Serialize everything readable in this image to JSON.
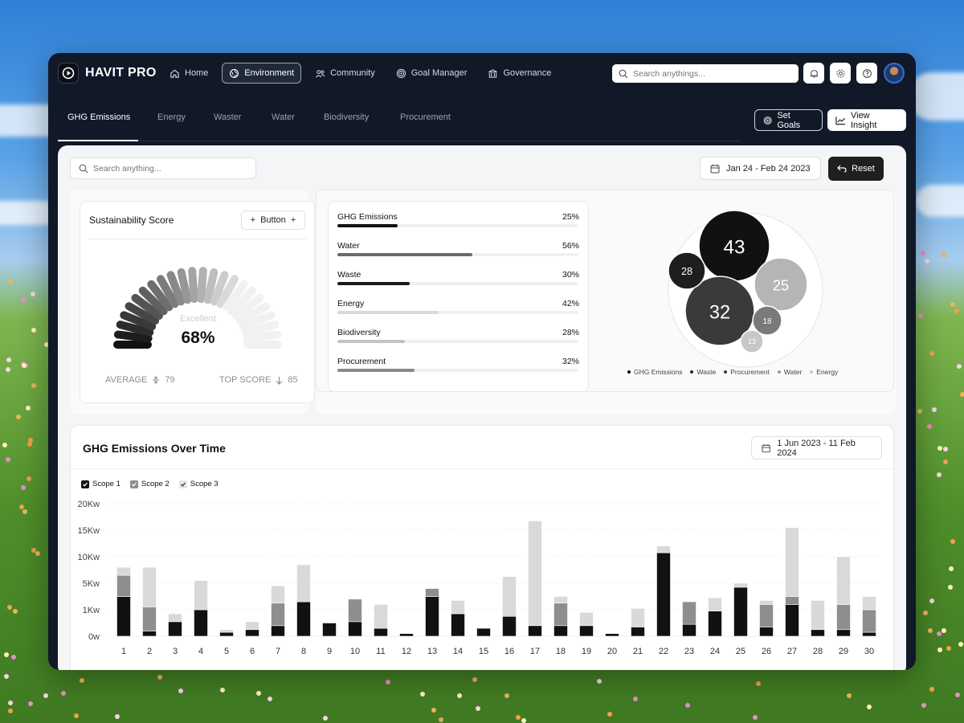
{
  "app": {
    "name": "HAVIT PRO"
  },
  "nav": [
    {
      "label": "Home",
      "icon": "home-icon"
    },
    {
      "label": "Environment",
      "icon": "globe-icon"
    },
    {
      "label": "Community",
      "icon": "users-icon"
    },
    {
      "label": "Goal Manager",
      "icon": "target-icon"
    },
    {
      "label": "Governance",
      "icon": "bank-icon"
    }
  ],
  "top_search": {
    "placeholder": "Search anythings..."
  },
  "tabs": [
    "GHG Emissions",
    "Energy",
    "Waster",
    "Water",
    "Biodiversity",
    "Procurement"
  ],
  "actions": {
    "set_goals": "Set Goals",
    "view_insight": "View Insight"
  },
  "main_search": {
    "placeholder": "Search anything..."
  },
  "date_range": "Jan 24 - Feb 24 2023",
  "reset_label": "Reset",
  "sustainability": {
    "title": "Sustainability Score",
    "button_label": "Button",
    "rating": "Excellent",
    "score": "68%",
    "score_fraction": 0.68,
    "average_label": "AVERAGE",
    "average_value": "79",
    "top_label": "TOP SCORE",
    "top_value": "85"
  },
  "breakdown": [
    {
      "label": "GHG Emissions",
      "value": "25%",
      "fraction": 0.25,
      "color": "#111111"
    },
    {
      "label": "Water",
      "value": "56%",
      "fraction": 0.56,
      "color": "#6b6b6b"
    },
    {
      "label": "Waste",
      "value": "30%",
      "fraction": 0.3,
      "color": "#1a1a1a"
    },
    {
      "label": "Energy",
      "value": "42%",
      "fraction": 0.42,
      "color": "#d9d9d9"
    },
    {
      "label": "Biodiversity",
      "value": "28%",
      "fraction": 0.28,
      "color": "#c4c4c4"
    },
    {
      "label": "Procurement",
      "value": "32%",
      "fraction": 0.32,
      "color": "#8a8a8a"
    }
  ],
  "bubbles": {
    "values": [
      "43",
      "32",
      "28",
      "25",
      "18",
      "13"
    ],
    "colors": [
      "#111111",
      "#3a3a3a",
      "#1e1e1e",
      "#b5b5b5",
      "#7a7a7a",
      "#c7c7c7"
    ],
    "legend": [
      {
        "label": "GHG Emissions",
        "color": "#111111"
      },
      {
        "label": "Waste",
        "color": "#2a2a2a"
      },
      {
        "label": "Procurement",
        "color": "#3a3a3a"
      },
      {
        "label": "Water",
        "color": "#9a9a9a"
      },
      {
        "label": "Energy",
        "color": "#c7c7c7"
      }
    ]
  },
  "emissions": {
    "title": "GHG Emissions Over Time",
    "date_range": "1 Jun 2023 - 11 Feb 2024",
    "scopes": [
      "Scope 1",
      "Scope 2",
      "Scope 3"
    ]
  },
  "chart_data": {
    "type": "bar",
    "stacked": true,
    "categories": [
      "1",
      "2",
      "3",
      "4",
      "5",
      "6",
      "7",
      "8",
      "9",
      "10",
      "11",
      "12",
      "13",
      "14",
      "15",
      "16",
      "17",
      "18",
      "19",
      "20",
      "21",
      "22",
      "23",
      "24",
      "25",
      "26",
      "27",
      "28",
      "29",
      "30"
    ],
    "y_ticks": [
      "0w",
      "1Kw",
      "5Kw",
      "10Kw",
      "15Kw",
      "20Kw"
    ],
    "series": [
      {
        "name": "Scope 1",
        "color": "#111111",
        "values": [
          1.5,
          0.2,
          0.55,
          1,
          0.15,
          0.25,
          0.4,
          1.3,
          0.5,
          0.55,
          0.3,
          0.1,
          1.5,
          0.85,
          0.3,
          0.75,
          0.4,
          0.4,
          0.4,
          0.1,
          0.35,
          3.15,
          0.45,
          0.95,
          1.85,
          0.35,
          1.2,
          0.25,
          0.25,
          0.15
        ]
      },
      {
        "name": "Scope 2",
        "color": "#8e8e8e",
        "values": [
          0.8,
          0.9,
          0,
          0,
          0,
          0,
          0.85,
          0,
          0,
          0.85,
          0,
          0,
          0.3,
          0,
          0,
          0,
          0,
          0.85,
          0,
          0,
          0,
          0,
          0.85,
          0,
          0,
          0.85,
          0.3,
          0,
          0.95,
          0.85
        ]
      },
      {
        "name": "Scope 3",
        "color": "#d9d9d9",
        "values": [
          0.3,
          1.5,
          0.3,
          1.1,
          0.1,
          0.3,
          0.65,
          1.4,
          0,
          0,
          0.9,
          0,
          0,
          0.5,
          0,
          1.5,
          3.95,
          0.25,
          0.5,
          0,
          0.7,
          0.25,
          0,
          0.5,
          0.15,
          0.15,
          2.6,
          1.1,
          1.8,
          0.5
        ]
      }
    ]
  }
}
